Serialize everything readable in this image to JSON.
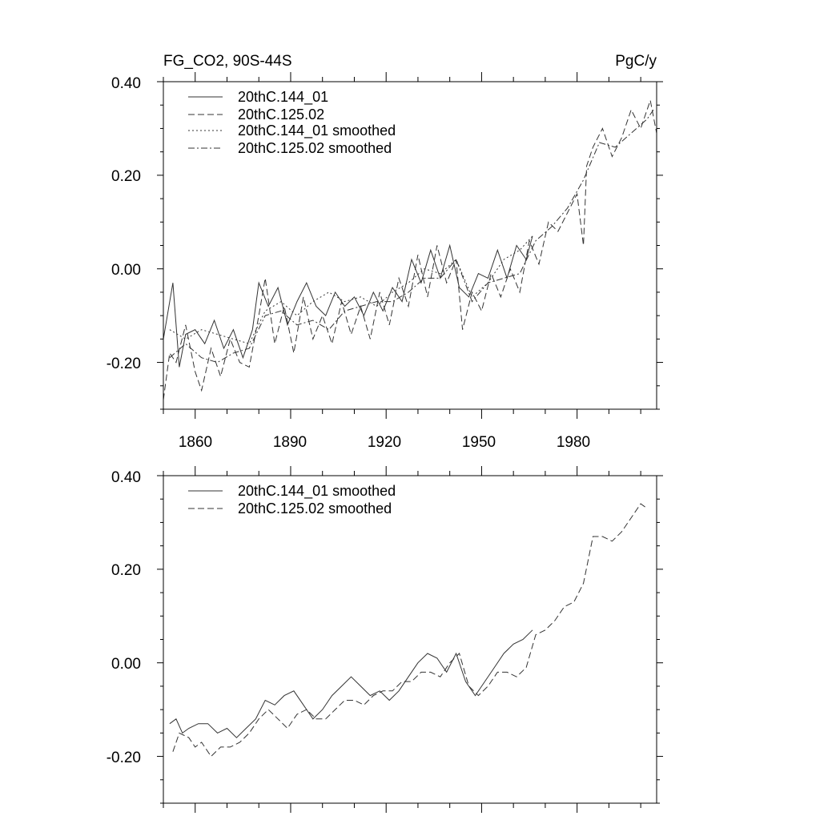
{
  "chart_data": [
    {
      "type": "line",
      "title_left": "FG_CO2, 90S-44S",
      "title_right": "PgC/y",
      "xlim": [
        1850,
        2005
      ],
      "ylim": [
        -0.3,
        0.4
      ],
      "yticks": [
        -0.2,
        0.0,
        0.2,
        0.4
      ],
      "yticklabels": [
        "-0.20",
        "0.00",
        "0.20",
        "0.40"
      ],
      "xticks": [
        1860,
        1890,
        1920,
        1950,
        1980
      ],
      "xticklabels": [
        "1860",
        "1890",
        "1920",
        "1950",
        "1980"
      ],
      "legend": [
        "20thC.144_01",
        "20thC.125.02",
        "20thC.144_01 smoothed",
        "20thC.125.02 smoothed"
      ],
      "legend_placement": "top-left",
      "series": [
        {
          "name": "20thC.144_01",
          "style": "solid",
          "x": [
            1850,
            1853,
            1855,
            1857,
            1860,
            1863,
            1866,
            1869,
            1872,
            1875,
            1878,
            1880,
            1883,
            1886,
            1889,
            1892,
            1895,
            1898,
            1901,
            1904,
            1907,
            1910,
            1913,
            1916,
            1919,
            1922,
            1925,
            1928,
            1931,
            1934,
            1937,
            1940,
            1943,
            1946,
            1949,
            1952,
            1955,
            1958,
            1961,
            1964,
            1966
          ],
          "y": [
            -0.15,
            -0.03,
            -0.21,
            -0.14,
            -0.13,
            -0.16,
            -0.11,
            -0.17,
            -0.13,
            -0.19,
            -0.13,
            -0.03,
            -0.08,
            -0.04,
            -0.12,
            -0.07,
            -0.03,
            -0.08,
            -0.1,
            -0.05,
            -0.08,
            -0.06,
            -0.1,
            -0.05,
            -0.09,
            -0.04,
            -0.07,
            0.02,
            -0.03,
            0.04,
            -0.02,
            0.05,
            -0.04,
            -0.06,
            -0.01,
            -0.02,
            0.04,
            -0.02,
            0.05,
            0.02,
            0.07
          ]
        },
        {
          "name": "20thC.125.02",
          "style": "dashed",
          "x": [
            1850,
            1852,
            1854,
            1857,
            1860,
            1862,
            1865,
            1868,
            1871,
            1874,
            1877,
            1880,
            1882,
            1885,
            1888,
            1891,
            1894,
            1897,
            1900,
            1903,
            1906,
            1909,
            1912,
            1915,
            1918,
            1921,
            1924,
            1927,
            1930,
            1933,
            1936,
            1939,
            1942,
            1944,
            1947,
            1950,
            1953,
            1956,
            1959,
            1962,
            1965,
            1968,
            1971,
            1974,
            1977,
            1980,
            1982,
            1983,
            1985,
            1988,
            1991,
            1994,
            1997,
            2000,
            2003,
            2005
          ],
          "y": [
            -0.28,
            -0.18,
            -0.2,
            -0.12,
            -0.22,
            -0.26,
            -0.17,
            -0.23,
            -0.15,
            -0.2,
            -0.21,
            -0.1,
            -0.02,
            -0.16,
            -0.08,
            -0.18,
            -0.06,
            -0.15,
            -0.1,
            -0.16,
            -0.07,
            -0.14,
            -0.08,
            -0.15,
            -0.05,
            -0.12,
            -0.02,
            -0.08,
            0.03,
            -0.06,
            0.05,
            -0.03,
            0.02,
            -0.13,
            -0.05,
            -0.09,
            -0.01,
            -0.06,
            0.0,
            -0.05,
            0.06,
            0.01,
            0.1,
            0.08,
            0.12,
            0.16,
            0.05,
            0.22,
            0.26,
            0.3,
            0.24,
            0.28,
            0.34,
            0.3,
            0.36,
            0.29
          ]
        },
        {
          "name": "20thC.144_01 smoothed",
          "style": "dotted",
          "x": [
            1852,
            1857,
            1862,
            1867,
            1872,
            1877,
            1882,
            1887,
            1892,
            1897,
            1902,
            1907,
            1912,
            1917,
            1922,
            1927,
            1932,
            1937,
            1942,
            1947,
            1952,
            1957,
            1962,
            1966
          ],
          "y": [
            -0.13,
            -0.15,
            -0.13,
            -0.14,
            -0.15,
            -0.16,
            -0.09,
            -0.07,
            -0.1,
            -0.07,
            -0.05,
            -0.07,
            -0.06,
            -0.08,
            -0.05,
            -0.03,
            0.0,
            -0.01,
            0.02,
            -0.06,
            -0.03,
            0.02,
            0.04,
            0.07
          ]
        },
        {
          "name": "20thC.125.02 smoothed",
          "style": "dashdot",
          "x": [
            1852,
            1857,
            1862,
            1867,
            1872,
            1877,
            1882,
            1887,
            1892,
            1897,
            1902,
            1907,
            1912,
            1917,
            1922,
            1927,
            1932,
            1937,
            1942,
            1947,
            1952,
            1957,
            1962,
            1967,
            1972,
            1977,
            1982,
            1987,
            1992,
            1997,
            2002,
            2004
          ],
          "y": [
            -0.19,
            -0.16,
            -0.19,
            -0.2,
            -0.18,
            -0.17,
            -0.1,
            -0.09,
            -0.12,
            -0.11,
            -0.13,
            -0.09,
            -0.08,
            -0.07,
            -0.07,
            -0.05,
            -0.02,
            -0.02,
            0.02,
            -0.07,
            -0.03,
            -0.02,
            -0.01,
            0.06,
            0.09,
            0.13,
            0.19,
            0.27,
            0.26,
            0.29,
            0.32,
            0.34
          ]
        }
      ]
    },
    {
      "type": "line",
      "xlim": [
        1850,
        2005
      ],
      "ylim": [
        -0.3,
        0.4
      ],
      "yticks": [
        -0.2,
        0.0,
        0.2,
        0.4
      ],
      "yticklabels": [
        "-0.20",
        "0.00",
        "0.20",
        "0.40"
      ],
      "xticks": [
        1860,
        1890,
        1920,
        1950,
        1980
      ],
      "legend": [
        "20thC.144_01 smoothed",
        "20thC.125.02 smoothed"
      ],
      "legend_placement": "top-left",
      "series": [
        {
          "name": "20thC.144_01 smoothed",
          "style": "solid",
          "x": [
            1852,
            1854,
            1856,
            1858,
            1861,
            1864,
            1867,
            1870,
            1873,
            1876,
            1879,
            1882,
            1885,
            1888,
            1891,
            1894,
            1897,
            1900,
            1903,
            1906,
            1909,
            1912,
            1915,
            1918,
            1921,
            1924,
            1927,
            1930,
            1933,
            1936,
            1939,
            1942,
            1945,
            1948,
            1951,
            1954,
            1957,
            1960,
            1963,
            1966
          ],
          "y": [
            -0.13,
            -0.12,
            -0.15,
            -0.14,
            -0.13,
            -0.13,
            -0.15,
            -0.14,
            -0.16,
            -0.14,
            -0.12,
            -0.08,
            -0.09,
            -0.07,
            -0.06,
            -0.09,
            -0.12,
            -0.1,
            -0.07,
            -0.05,
            -0.03,
            -0.05,
            -0.07,
            -0.06,
            -0.08,
            -0.06,
            -0.03,
            0.0,
            0.02,
            0.01,
            -0.02,
            0.02,
            -0.04,
            -0.07,
            -0.04,
            -0.01,
            0.02,
            0.04,
            0.05,
            0.07
          ]
        },
        {
          "name": "20thC.125.02 smoothed",
          "style": "dashed",
          "x": [
            1853,
            1855,
            1858,
            1860,
            1862,
            1865,
            1868,
            1871,
            1874,
            1877,
            1880,
            1883,
            1886,
            1889,
            1892,
            1895,
            1898,
            1901,
            1904,
            1907,
            1910,
            1913,
            1916,
            1919,
            1922,
            1925,
            1928,
            1931,
            1934,
            1937,
            1940,
            1943,
            1946,
            1949,
            1952,
            1955,
            1958,
            1961,
            1964,
            1967,
            1970,
            1973,
            1976,
            1979,
            1982,
            1985,
            1988,
            1991,
            1994,
            1997,
            2000,
            2002
          ],
          "y": [
            -0.19,
            -0.15,
            -0.16,
            -0.18,
            -0.17,
            -0.2,
            -0.18,
            -0.18,
            -0.17,
            -0.15,
            -0.12,
            -0.1,
            -0.12,
            -0.14,
            -0.11,
            -0.1,
            -0.12,
            -0.12,
            -0.1,
            -0.08,
            -0.08,
            -0.09,
            -0.07,
            -0.06,
            -0.06,
            -0.04,
            -0.04,
            -0.02,
            -0.02,
            -0.03,
            0.0,
            0.02,
            -0.05,
            -0.07,
            -0.05,
            -0.02,
            -0.02,
            -0.03,
            -0.01,
            0.06,
            0.07,
            0.09,
            0.12,
            0.13,
            0.17,
            0.27,
            0.27,
            0.26,
            0.28,
            0.31,
            0.34,
            0.33
          ]
        }
      ]
    }
  ]
}
